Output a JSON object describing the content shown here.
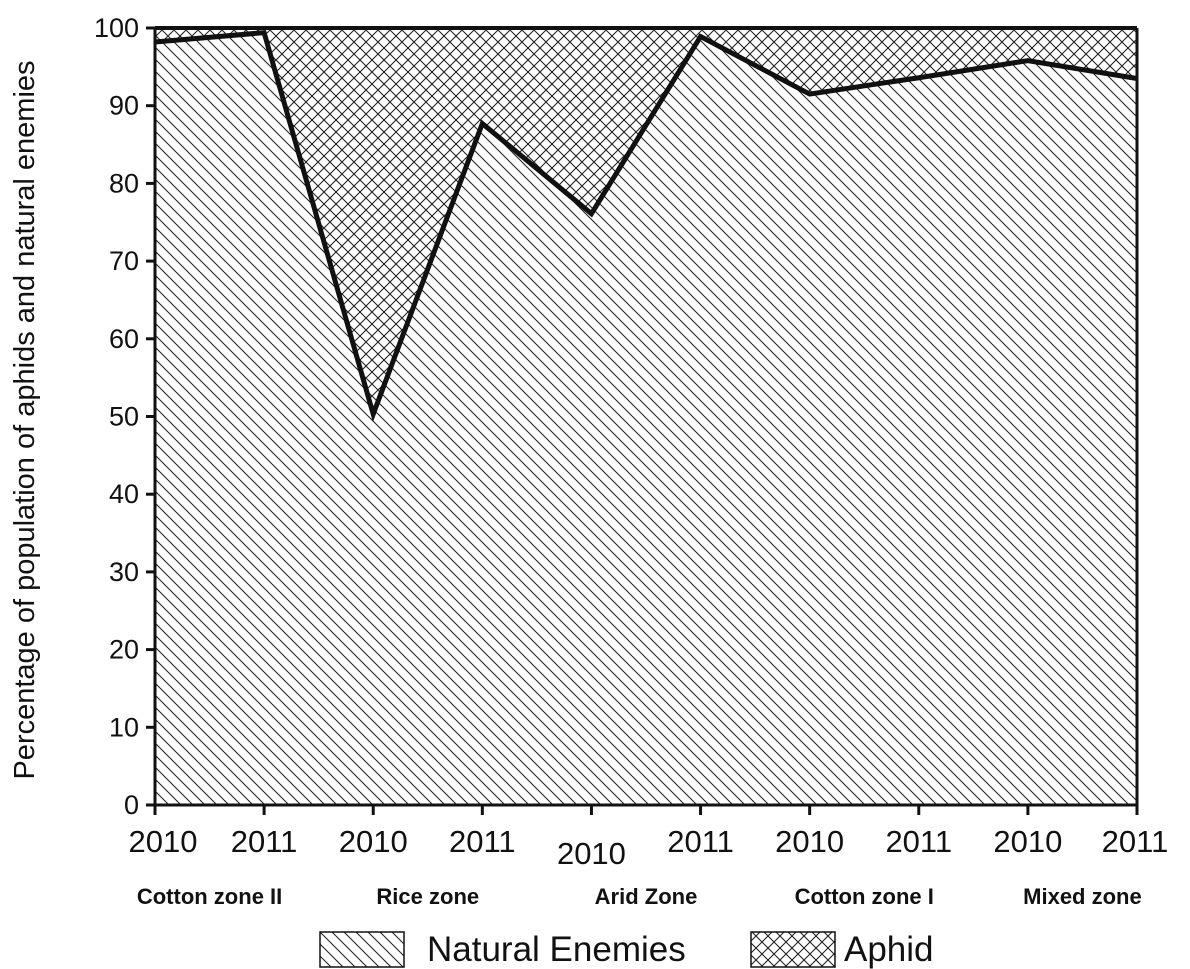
{
  "chart_data": {
    "type": "area",
    "title": "",
    "xlabel": "",
    "ylabel": "Percentage of population of aphids and natural enemies",
    "ylim": [
      0,
      100
    ],
    "yticks": [
      0,
      10,
      20,
      30,
      40,
      50,
      60,
      70,
      80,
      90,
      100
    ],
    "x": [
      "2010",
      "2011",
      "2010",
      "2011",
      "2010",
      "2011",
      "2010",
      "2011",
      "2010",
      "2011"
    ],
    "groups": [
      "Cotton zone II",
      "Rice zone",
      "Arid Zone",
      "Cotton zone I",
      "Mixed zone"
    ],
    "stacked": true,
    "series": [
      {
        "name": "Natural Enemies",
        "pattern": "diagonal-hatch",
        "values": [
          98.2,
          99.4,
          50.3,
          87.7,
          76.1,
          98.9,
          91.5,
          93.6,
          95.8,
          93.5
        ]
      },
      {
        "name": "Aphid",
        "pattern": "cross-hatch",
        "values": [
          1.8,
          0.6,
          49.7,
          12.3,
          23.9,
          1.1,
          8.5,
          6.4,
          4.2,
          6.5
        ]
      }
    ],
    "legend": "bottom-center",
    "grid": false,
    "colors": {
      "line": "#111111",
      "hatch": "#222222",
      "background": "#ffffff"
    }
  }
}
